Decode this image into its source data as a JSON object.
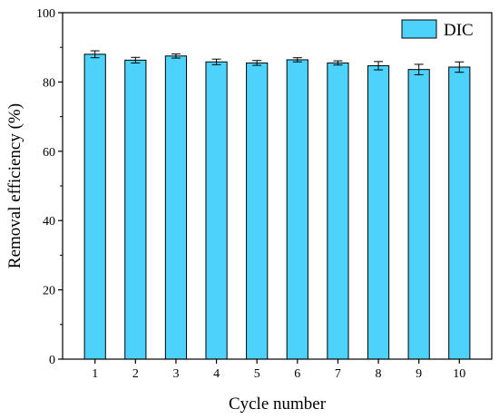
{
  "chart_data": {
    "type": "bar",
    "categories": [
      "1",
      "2",
      "3",
      "4",
      "5",
      "6",
      "7",
      "8",
      "9",
      "10"
    ],
    "series": [
      {
        "name": "DIC",
        "values": [
          88.0,
          86.3,
          87.5,
          85.8,
          85.5,
          86.4,
          85.5,
          84.7,
          83.6,
          84.3
        ],
        "errors": [
          1.0,
          0.8,
          0.6,
          0.8,
          0.7,
          0.6,
          0.6,
          1.2,
          1.5,
          1.5
        ],
        "color": "#4dd2fb"
      }
    ],
    "xlabel": "Cycle number",
    "ylabel": "Removal efficiency (%)",
    "ylim": [
      0,
      100
    ],
    "yticks": [
      0,
      20,
      40,
      60,
      80,
      100
    ],
    "grid": false,
    "legend": "top-right"
  }
}
